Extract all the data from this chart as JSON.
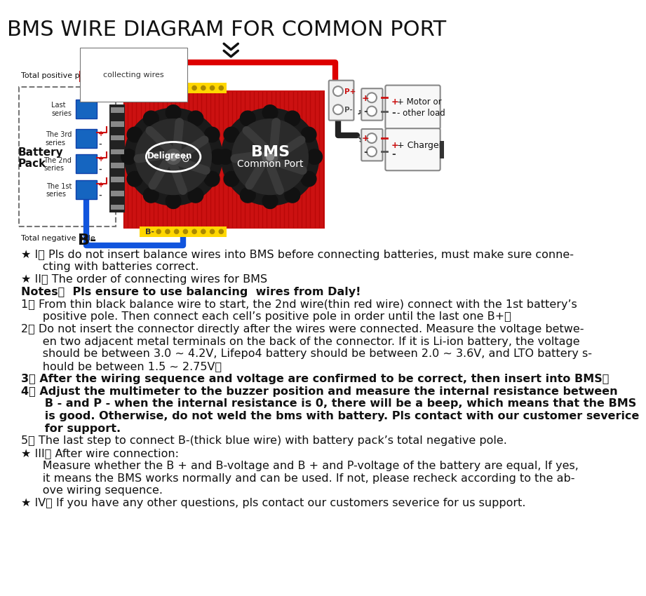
{
  "title": "BMS WIRE DIAGRAM FOR COMMON PORT",
  "bg_color": "#ffffff",
  "title_fontsize": 22,
  "instructions": [
    {
      "prefix": "★ I、",
      "text": " Pls do not insert balance wires into BMS before connecting batteries, must make sure conne-",
      "bold": false,
      "indent": false
    },
    {
      "prefix": "",
      "text": "      cting with batteries correct.",
      "bold": false,
      "indent": false
    },
    {
      "prefix": "★ II、",
      "text": " The order of connecting wires for BMS",
      "bold": false,
      "indent": false
    },
    {
      "prefix": "Notes：",
      "text": "  Pls ensure to use balancing  wires from Daly!",
      "bold": true,
      "indent": false
    },
    {
      "prefix": "1、",
      "text": " From thin black balance wire to start, the 2nd wire(thin red wire) connect with the 1st battery’s",
      "bold": false,
      "indent": false
    },
    {
      "prefix": "",
      "text": "      positive pole. Then connect each cell’s positive pole in order until the last one B+；",
      "bold": false,
      "indent": false
    },
    {
      "prefix": "2、",
      "text": " Do not insert the connector directly after the wires were connected. Measure the voltage betwe-",
      "bold": false,
      "indent": false
    },
    {
      "prefix": "",
      "text": "      en two adjacent metal terminals on the back of the connector. If it is Li-ion battery, the voltage",
      "bold": false,
      "indent": false
    },
    {
      "prefix": "",
      "text": "      should be between 3.0 ~ 4.2V, Lifepo4 battery should be between 2.0 ~ 3.6V, and LTO battery s-",
      "bold": false,
      "indent": false
    },
    {
      "prefix": "",
      "text": "      hould be between 1.5 ~ 2.75V；",
      "bold": false,
      "indent": false
    },
    {
      "prefix": "3、",
      "text": " After the wiring sequence and voltage are confirmed to be correct, then insert into BMS；",
      "bold": true,
      "indent": false
    },
    {
      "prefix": "4、",
      "text": " Adjust the multimeter to the buzzer position and measure the internal resistance between",
      "bold": true,
      "indent": false
    },
    {
      "prefix": "",
      "text": "      B - and P - when the internal resistance is 0, there will be a beep, which means that the BMS",
      "bold": true,
      "indent": false
    },
    {
      "prefix": "",
      "text": "      is good. Otherwise, do not weld the bms with battery. Pls contact with our customer severice",
      "bold": true,
      "indent": false
    },
    {
      "prefix": "",
      "text": "      for support.",
      "bold": true,
      "indent": false
    },
    {
      "prefix": "5、",
      "text": " The last step to connect B-(thick blue wire) with battery pack’s total negative pole.",
      "bold": false,
      "indent": false
    },
    {
      "prefix": "★ III、",
      "text": " After wire connection:",
      "bold": false,
      "indent": false
    },
    {
      "prefix": "",
      "text": "      Measure whether the B + and B-voltage and B + and P-voltage of the battery are equal, If yes,",
      "bold": false,
      "indent": false
    },
    {
      "prefix": "",
      "text": "      it means the BMS works normally and can be used. If not, please recheck according to the ab-",
      "bold": false,
      "indent": false
    },
    {
      "prefix": "",
      "text": "      ove wiring sequence.",
      "bold": false,
      "indent": false
    },
    {
      "prefix": "★ IV、",
      "text": " If you have any other questions, pls contact our customers severice for us support.",
      "bold": false,
      "indent": false
    }
  ]
}
